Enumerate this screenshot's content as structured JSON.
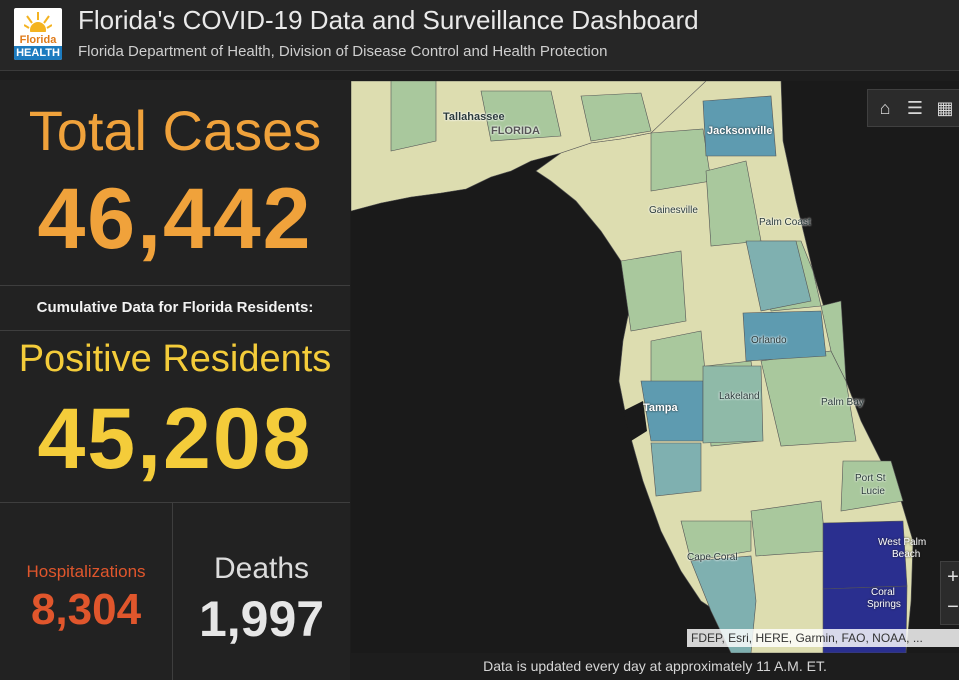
{
  "header": {
    "logo": {
      "line1": "Florida",
      "line2": "HEALTH",
      "icon": "sun-logo-icon"
    },
    "title": "Florida's COVID-19 Data and Surveillance Dashboard",
    "subtitle": "Florida Department of Health, Division of Disease Control and Health Protection"
  },
  "stats": {
    "total_cases_label": "Total Cases",
    "total_cases_value": "46,442",
    "cumulative_label": "Cumulative Data for Florida Residents:",
    "positive_residents_label": "Positive Residents",
    "positive_residents_value": "45,208",
    "hospitalizations_label": "Hospitalizations",
    "hospitalizations_value": "8,304",
    "deaths_label": "Deaths",
    "deaths_value": "1,997"
  },
  "colors": {
    "total_cases": "#f0a23b",
    "positive_residents": "#f4cc3a",
    "hospitalizations": "#e0562c",
    "deaths": "#e6e6e6",
    "map_low": "#ddddb0",
    "map_mid": "#a9c89d",
    "map_high": "#5e9bb0",
    "map_highest": "#2a2f8f"
  },
  "map": {
    "places": {
      "tallahassee": "Tallahassee",
      "florida": "FLORIDA",
      "jacksonville": "Jacksonville",
      "gainesville": "Gainesville",
      "palm_coast": "Palm Coast",
      "orlando": "Orlando",
      "tampa": "Tampa",
      "lakeland": "Lakeland",
      "palm_bay": "Palm Bay",
      "port_st_lucie_1": "Port St",
      "port_st_lucie_2": "Lucie",
      "west_palm_beach_1": "West Palm",
      "west_palm_beach_2": "Beach",
      "cape_coral": "Cape Coral",
      "coral_springs_1": "Coral",
      "coral_springs_2": "Springs"
    },
    "tools": {
      "home": "home-icon",
      "legend": "list-icon",
      "layers": "layers-icon"
    },
    "zoom": {
      "in": "+",
      "out": "−"
    },
    "attribution": "FDEP, Esri, HERE, Garmin, FAO, NOAA, ..."
  },
  "footer": {
    "update_note": "Data is updated every day at approximately 11 A.M. ET."
  }
}
